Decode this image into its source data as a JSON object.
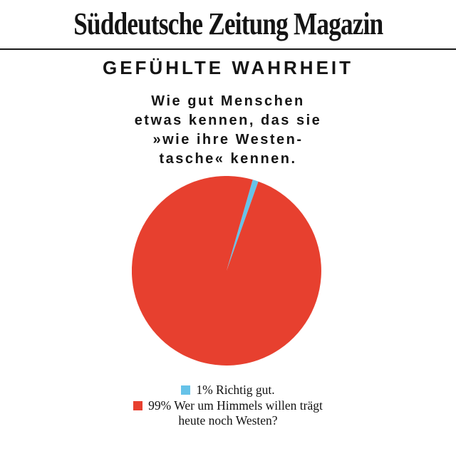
{
  "masthead": {
    "title": "Süddeutsche Zeitung Magazin"
  },
  "header": {
    "title": "GEFÜHLTE WAHRHEIT"
  },
  "subtitle": {
    "lines": [
      "Wie gut Menschen",
      "etwas kennen, das sie",
      "»wie ihre Westen-",
      "tasche« kennen."
    ]
  },
  "chart_data": {
    "type": "pie",
    "title": "GEFÜHLTE WAHRHEIT",
    "subtitle": "Wie gut Menschen etwas kennen, das sie »wie ihre Westentasche« kennen.",
    "slices": [
      {
        "label": "1% Richtig gut.",
        "value": 1,
        "color": "#66C2E8"
      },
      {
        "label": "99% Wer um Himmels willen trägt heute noch Westen?",
        "value": 99,
        "color": "#E7402F"
      }
    ],
    "start_angle_deg": 74,
    "direction": "clockwise",
    "legend_position": "bottom",
    "background": "#FFFFFF"
  },
  "legend": {
    "rows": [
      {
        "swatch_color": "#66C2E8",
        "lines": [
          "1% Richtig gut."
        ]
      },
      {
        "swatch_color": "#E7402F",
        "lines": [
          "99% Wer um Himmels willen trägt",
          "heute noch Westen?"
        ]
      }
    ]
  }
}
